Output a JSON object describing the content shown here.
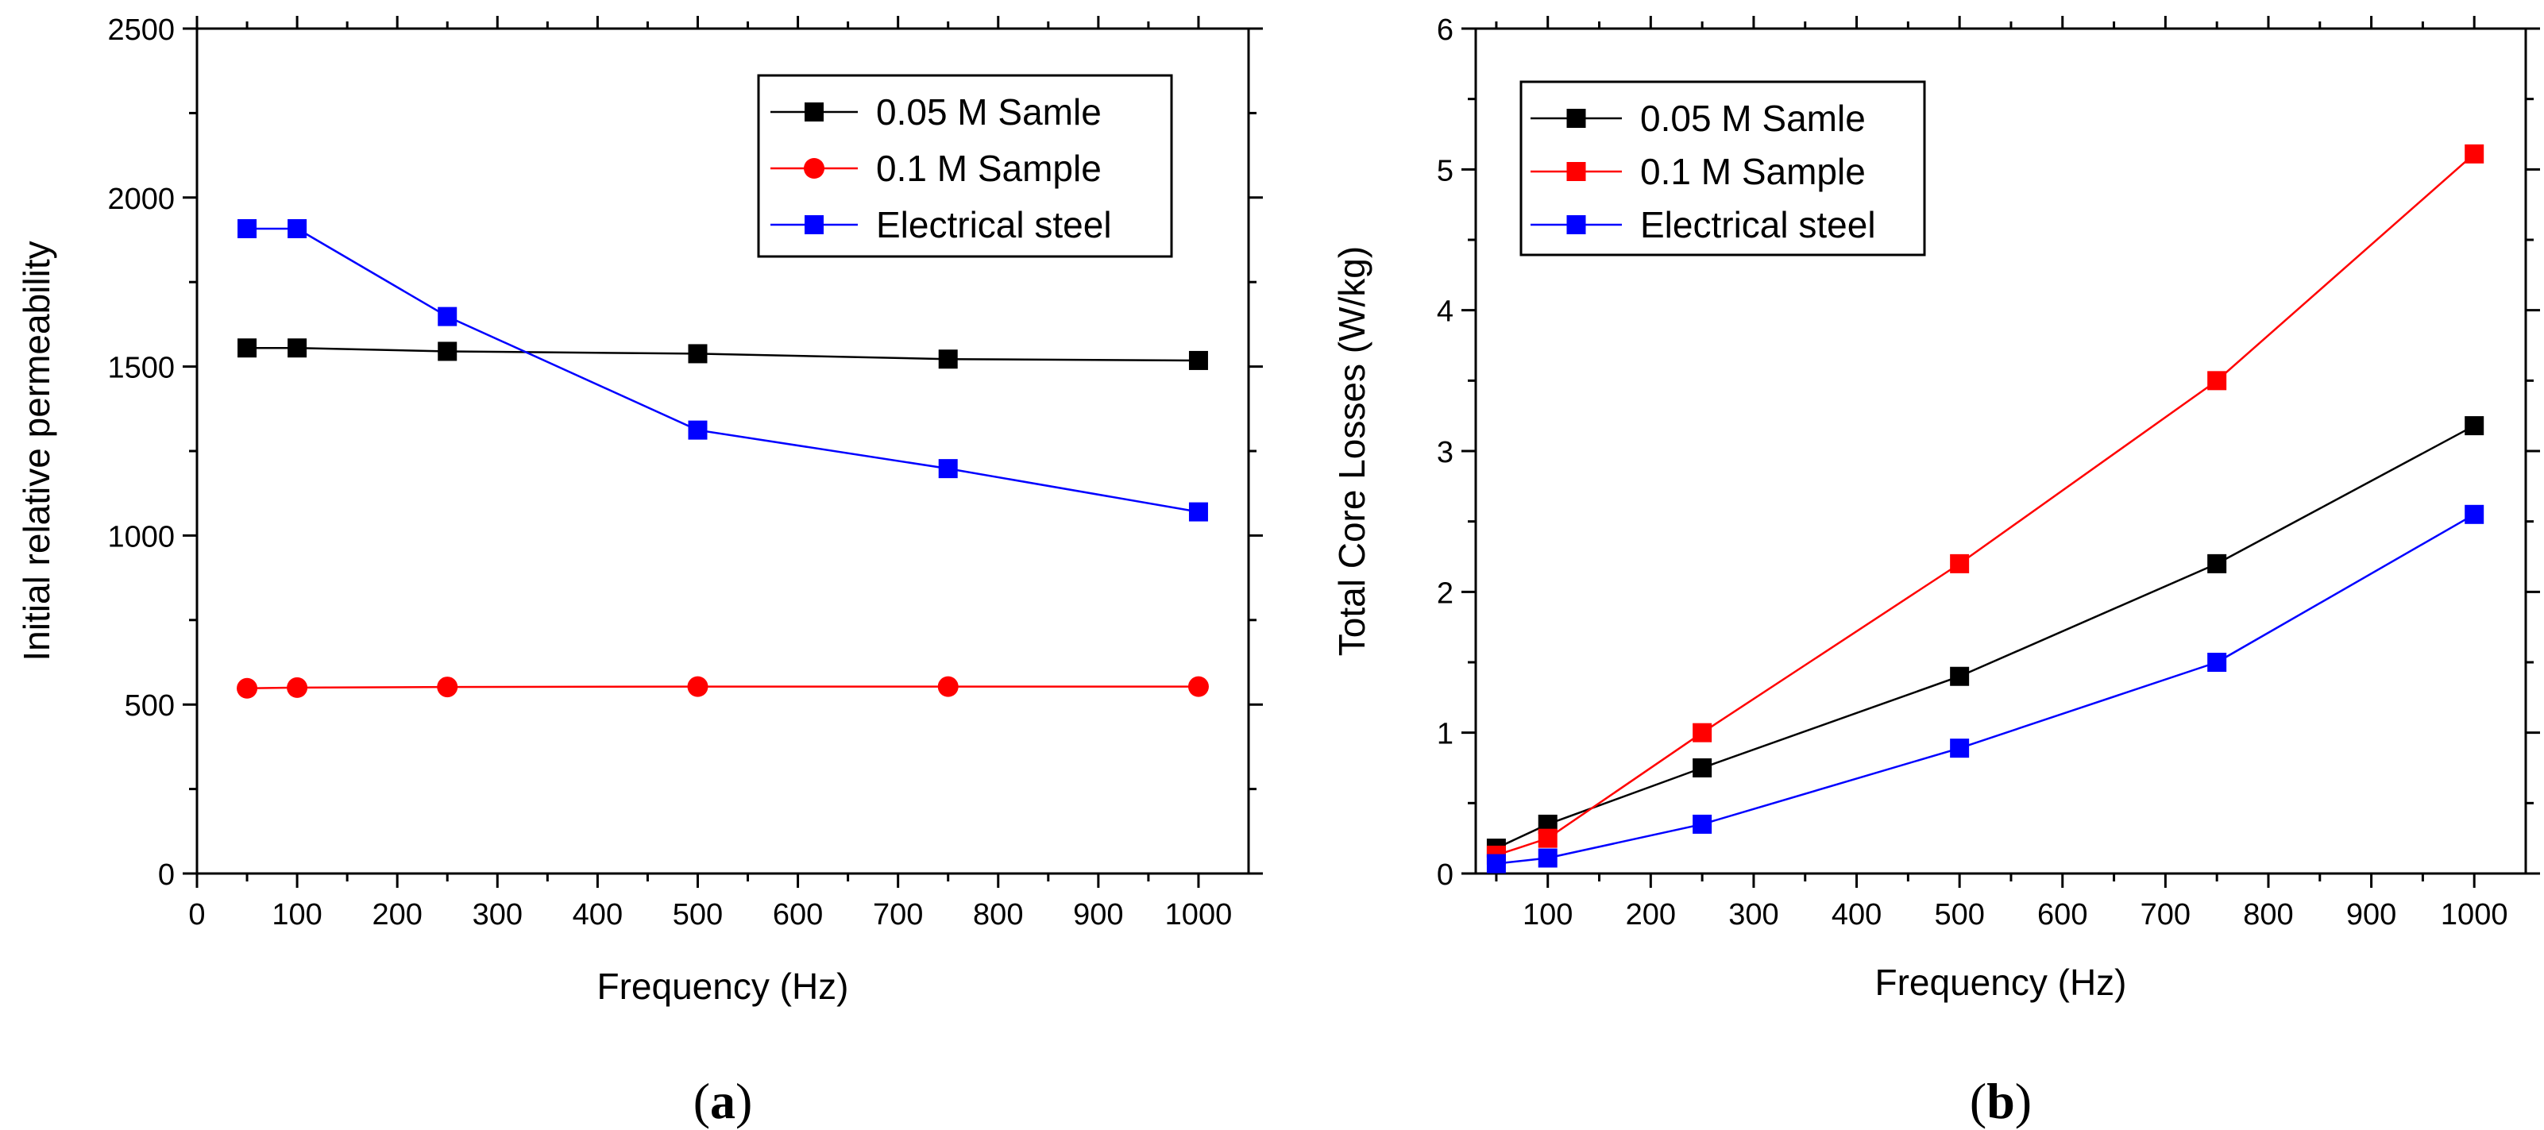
{
  "chart_data": [
    {
      "type": "line",
      "panel_label": "(a)",
      "panel_letter": "a",
      "title": "",
      "xlabel": "Frequency (Hz)",
      "ylabel": "Initial relative permeability",
      "xlim": [
        0,
        1050
      ],
      "ylim": [
        0,
        2500
      ],
      "xticks": [
        0,
        100,
        200,
        300,
        400,
        500,
        600,
        700,
        800,
        900,
        1000
      ],
      "yticks": [
        0,
        500,
        1000,
        1500,
        2000,
        2500
      ],
      "xminor": [
        50,
        150,
        250,
        350,
        450,
        550,
        650,
        750,
        850,
        950
      ],
      "yminor": [
        250,
        750,
        1250,
        1750,
        2250
      ],
      "legend_position": "top-right",
      "series": [
        {
          "name": "0.05 M Samle",
          "color": "#000000",
          "marker": "square",
          "x": [
            50,
            100,
            250,
            500,
            750,
            1000
          ],
          "y": [
            1555,
            1555,
            1545,
            1538,
            1522,
            1518
          ]
        },
        {
          "name": "0.1 M Sample",
          "color": "#ff0000",
          "marker": "circle",
          "x": [
            50,
            100,
            250,
            500,
            750,
            1000
          ],
          "y": [
            548,
            550,
            552,
            553,
            553,
            553
          ]
        },
        {
          "name": "Electrical steel",
          "color": "#0000ff",
          "marker": "square",
          "x": [
            50,
            100,
            250,
            500,
            750,
            1000
          ],
          "y": [
            1908,
            1908,
            1648,
            1312,
            1198,
            1070
          ]
        }
      ]
    },
    {
      "type": "line",
      "panel_label": "(b)",
      "panel_letter": "b",
      "title": "",
      "xlabel": "Frequency (Hz)",
      "ylabel": "Total Core Losses (W/kg)",
      "xlim": [
        30,
        1050
      ],
      "ylim": [
        0,
        6
      ],
      "xticks": [
        100,
        200,
        300,
        400,
        500,
        600,
        700,
        800,
        900,
        1000
      ],
      "yticks": [
        0,
        1,
        2,
        3,
        4,
        5,
        6
      ],
      "xminor": [
        50,
        150,
        250,
        350,
        450,
        550,
        650,
        750,
        850,
        950
      ],
      "yminor": [
        0.5,
        1.5,
        2.5,
        3.5,
        4.5,
        5.5
      ],
      "legend_position": "top-left",
      "series": [
        {
          "name": "0.05 M Samle",
          "color": "#000000",
          "marker": "square",
          "x": [
            50,
            100,
            250,
            500,
            750,
            1000
          ],
          "y": [
            0.18,
            0.35,
            0.75,
            1.4,
            2.2,
            3.18
          ]
        },
        {
          "name": "0.1 M Sample",
          "color": "#ff0000",
          "marker": "square",
          "x": [
            50,
            100,
            250,
            500,
            750,
            1000
          ],
          "y": [
            0.13,
            0.25,
            1.0,
            2.2,
            3.5,
            5.11
          ]
        },
        {
          "name": "Electrical steel",
          "color": "#0000ff",
          "marker": "square",
          "x": [
            50,
            100,
            250,
            500,
            750,
            1000
          ],
          "y": [
            0.07,
            0.11,
            0.35,
            0.89,
            1.5,
            2.55
          ]
        }
      ]
    }
  ]
}
